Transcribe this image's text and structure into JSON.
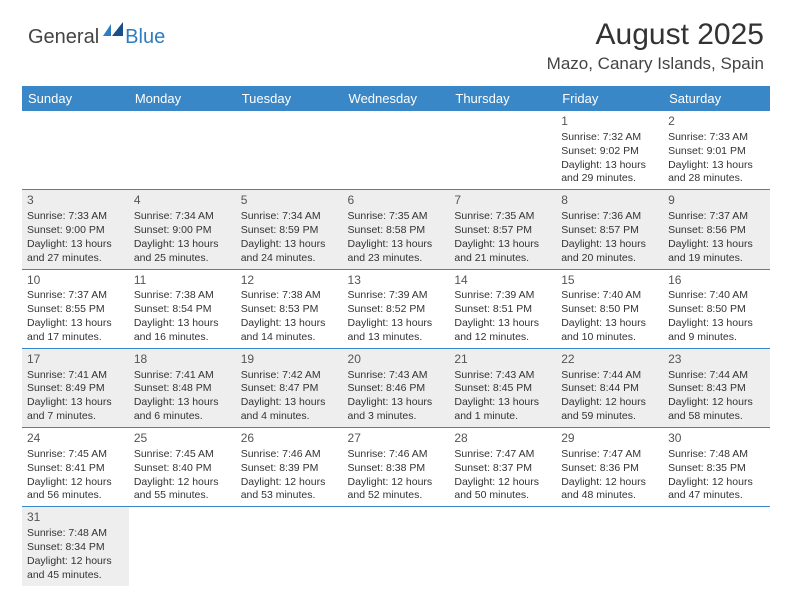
{
  "logo": {
    "general": "General",
    "blue": "Blue"
  },
  "title": "August 2025",
  "location": "Mazo, Canary Islands, Spain",
  "colors": {
    "header_bg": "#3a87c7",
    "header_text": "#ffffff",
    "shaded_bg": "#eeeeee",
    "row_border": "#3a87c7",
    "text": "#333333"
  },
  "day_headers": [
    "Sunday",
    "Monday",
    "Tuesday",
    "Wednesday",
    "Thursday",
    "Friday",
    "Saturday"
  ],
  "weeks": [
    [
      null,
      null,
      null,
      null,
      null,
      {
        "n": "1",
        "sr": "7:32 AM",
        "ss": "9:02 PM",
        "dl": "13 hours and 29 minutes."
      },
      {
        "n": "2",
        "sr": "7:33 AM",
        "ss": "9:01 PM",
        "dl": "13 hours and 28 minutes."
      }
    ],
    [
      {
        "n": "3",
        "sr": "7:33 AM",
        "ss": "9:00 PM",
        "dl": "13 hours and 27 minutes.",
        "shaded": true
      },
      {
        "n": "4",
        "sr": "7:34 AM",
        "ss": "9:00 PM",
        "dl": "13 hours and 25 minutes.",
        "shaded": true
      },
      {
        "n": "5",
        "sr": "7:34 AM",
        "ss": "8:59 PM",
        "dl": "13 hours and 24 minutes.",
        "shaded": true
      },
      {
        "n": "6",
        "sr": "7:35 AM",
        "ss": "8:58 PM",
        "dl": "13 hours and 23 minutes.",
        "shaded": true
      },
      {
        "n": "7",
        "sr": "7:35 AM",
        "ss": "8:57 PM",
        "dl": "13 hours and 21 minutes.",
        "shaded": true
      },
      {
        "n": "8",
        "sr": "7:36 AM",
        "ss": "8:57 PM",
        "dl": "13 hours and 20 minutes.",
        "shaded": true
      },
      {
        "n": "9",
        "sr": "7:37 AM",
        "ss": "8:56 PM",
        "dl": "13 hours and 19 minutes.",
        "shaded": true
      }
    ],
    [
      {
        "n": "10",
        "sr": "7:37 AM",
        "ss": "8:55 PM",
        "dl": "13 hours and 17 minutes."
      },
      {
        "n": "11",
        "sr": "7:38 AM",
        "ss": "8:54 PM",
        "dl": "13 hours and 16 minutes."
      },
      {
        "n": "12",
        "sr": "7:38 AM",
        "ss": "8:53 PM",
        "dl": "13 hours and 14 minutes."
      },
      {
        "n": "13",
        "sr": "7:39 AM",
        "ss": "8:52 PM",
        "dl": "13 hours and 13 minutes."
      },
      {
        "n": "14",
        "sr": "7:39 AM",
        "ss": "8:51 PM",
        "dl": "13 hours and 12 minutes."
      },
      {
        "n": "15",
        "sr": "7:40 AM",
        "ss": "8:50 PM",
        "dl": "13 hours and 10 minutes."
      },
      {
        "n": "16",
        "sr": "7:40 AM",
        "ss": "8:50 PM",
        "dl": "13 hours and 9 minutes."
      }
    ],
    [
      {
        "n": "17",
        "sr": "7:41 AM",
        "ss": "8:49 PM",
        "dl": "13 hours and 7 minutes.",
        "shaded": true
      },
      {
        "n": "18",
        "sr": "7:41 AM",
        "ss": "8:48 PM",
        "dl": "13 hours and 6 minutes.",
        "shaded": true
      },
      {
        "n": "19",
        "sr": "7:42 AM",
        "ss": "8:47 PM",
        "dl": "13 hours and 4 minutes.",
        "shaded": true
      },
      {
        "n": "20",
        "sr": "7:43 AM",
        "ss": "8:46 PM",
        "dl": "13 hours and 3 minutes.",
        "shaded": true
      },
      {
        "n": "21",
        "sr": "7:43 AM",
        "ss": "8:45 PM",
        "dl": "13 hours and 1 minute.",
        "shaded": true
      },
      {
        "n": "22",
        "sr": "7:44 AM",
        "ss": "8:44 PM",
        "dl": "12 hours and 59 minutes.",
        "shaded": true
      },
      {
        "n": "23",
        "sr": "7:44 AM",
        "ss": "8:43 PM",
        "dl": "12 hours and 58 minutes.",
        "shaded": true
      }
    ],
    [
      {
        "n": "24",
        "sr": "7:45 AM",
        "ss": "8:41 PM",
        "dl": "12 hours and 56 minutes."
      },
      {
        "n": "25",
        "sr": "7:45 AM",
        "ss": "8:40 PM",
        "dl": "12 hours and 55 minutes."
      },
      {
        "n": "26",
        "sr": "7:46 AM",
        "ss": "8:39 PM",
        "dl": "12 hours and 53 minutes."
      },
      {
        "n": "27",
        "sr": "7:46 AM",
        "ss": "8:38 PM",
        "dl": "12 hours and 52 minutes."
      },
      {
        "n": "28",
        "sr": "7:47 AM",
        "ss": "8:37 PM",
        "dl": "12 hours and 50 minutes."
      },
      {
        "n": "29",
        "sr": "7:47 AM",
        "ss": "8:36 PM",
        "dl": "12 hours and 48 minutes."
      },
      {
        "n": "30",
        "sr": "7:48 AM",
        "ss": "8:35 PM",
        "dl": "12 hours and 47 minutes."
      }
    ],
    [
      {
        "n": "31",
        "sr": "7:48 AM",
        "ss": "8:34 PM",
        "dl": "12 hours and 45 minutes.",
        "shaded": true
      },
      null,
      null,
      null,
      null,
      null,
      null
    ]
  ],
  "labels": {
    "sunrise": "Sunrise:",
    "sunset": "Sunset:",
    "daylight": "Daylight:"
  }
}
